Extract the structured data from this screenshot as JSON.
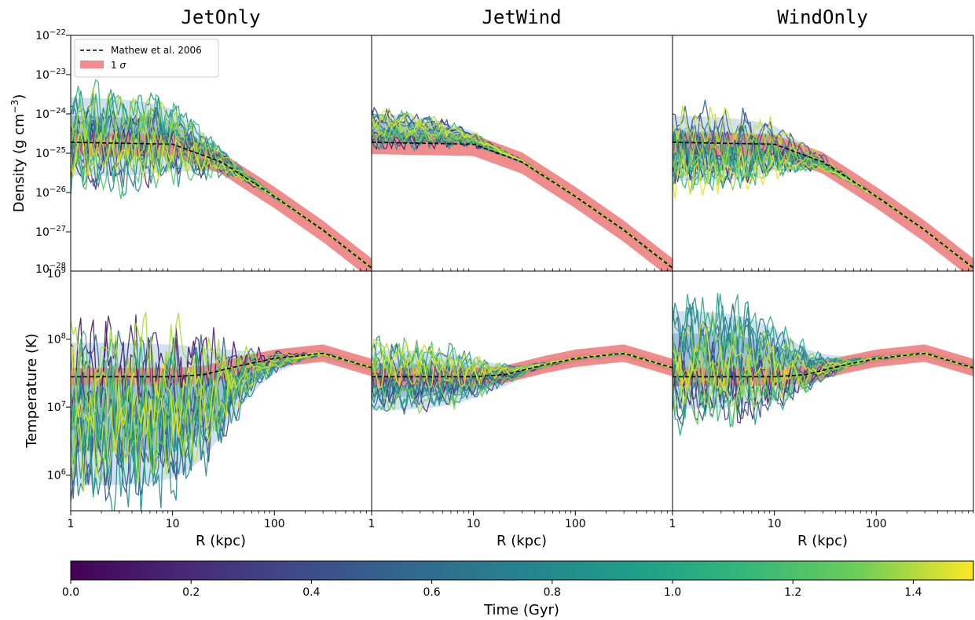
{
  "chart_data": {
    "type": "line",
    "panel_titles": [
      "JetOnly",
      "JetWind",
      "WindOnly"
    ],
    "row_ylabels": [
      "Density (g cm$^{-3}$)",
      "Temperature (K)"
    ],
    "ylabel_density_parts": [
      "Density (g cm",
      "−3",
      ")"
    ],
    "ylabel_temperature": "Temperature (K)",
    "xlabel": "R (kpc)",
    "xscale": "log",
    "xlim": [
      1,
      900
    ],
    "x_ticks": [
      "1",
      "10",
      "100"
    ],
    "density": {
      "yscale": "log",
      "ylim": [
        1e-28,
        1e-22
      ],
      "y_ticks": [
        {
          "base": "10",
          "exp": "−22"
        },
        {
          "base": "10",
          "exp": "−23"
        },
        {
          "base": "10",
          "exp": "−24"
        },
        {
          "base": "10",
          "exp": "−25"
        },
        {
          "base": "10",
          "exp": "−26"
        },
        {
          "base": "10",
          "exp": "−27"
        }
      ],
      "reference_curve": {
        "name": "Mathew et al. 2006",
        "r": [
          1,
          10,
          30,
          100,
          300,
          900
        ],
        "value": [
          1.9e-25,
          1.7e-25,
          6e-26,
          8e-27,
          1.1e-27,
          1.2e-28
        ]
      },
      "sigma_band": {
        "name": "1 σ",
        "lower_factor": 0.5,
        "upper_factor": 1.75
      }
    },
    "temperature": {
      "yscale": "log",
      "ylim": [
        300000,
        1000000000
      ],
      "y_ticks": [
        {
          "base": "10",
          "exp": "8"
        },
        {
          "base": "10",
          "exp": "7"
        },
        {
          "base": "10",
          "exp": "6"
        }
      ],
      "top_tick_overlap": {
        "base": "10",
        "exp": "9"
      },
      "reference_curve": {
        "name": "Mathew et al. 2006",
        "r": [
          1,
          10,
          20,
          50,
          100,
          300,
          900
        ],
        "value": [
          28000000,
          28000000,
          30000000,
          42000000,
          52000000,
          62000000,
          38000000
        ]
      },
      "sigma_band": {
        "name": "1 σ",
        "lower_factor": 0.75,
        "upper_factor": 1.35
      }
    },
    "legend": {
      "entries": [
        "Mathew et al. 2006",
        "1 σ"
      ],
      "sigma_parts": [
        "1 ",
        "σ"
      ],
      "location": "upper left",
      "panel": "JetOnly density"
    },
    "colorbar": {
      "label": "Time (Gyr)",
      "colormap": "viridis",
      "range": [
        0.0,
        1.5
      ],
      "ticks": [
        "0.0",
        "0.2",
        "0.4",
        "0.6",
        "0.8",
        "1.0",
        "1.2",
        "1.4"
      ]
    },
    "simulation_profiles": {
      "color_by": "Time (Gyr)",
      "times_gyr": [
        0.08,
        0.15,
        0.25,
        0.32,
        0.4,
        0.48,
        0.55,
        0.62,
        0.7,
        0.78,
        0.85,
        0.92,
        1.0,
        1.08,
        1.15,
        1.22,
        1.3,
        1.38,
        1.45
      ]
    },
    "colors": {
      "reference_line": "#000000",
      "sigma_band": "#f08080",
      "scatter_band_outer": "#bcd4e8",
      "scatter_band_inner": "#7fa8cc"
    }
  }
}
